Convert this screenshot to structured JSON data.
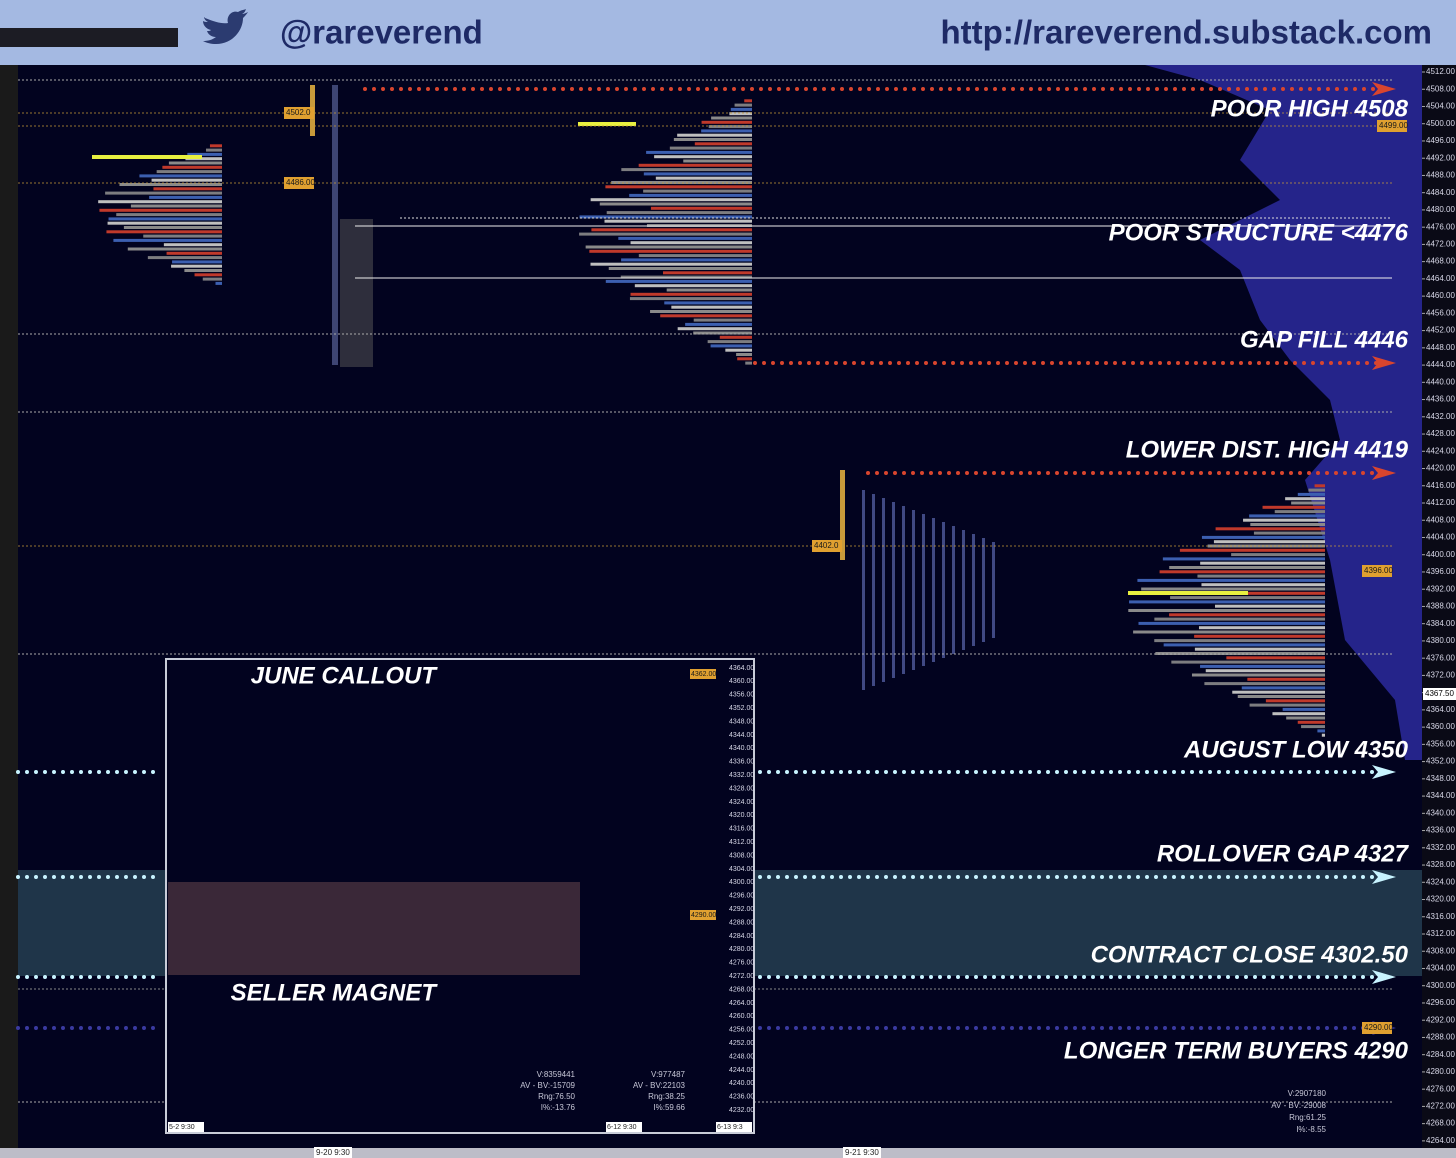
{
  "header": {
    "handle": "@rareverend",
    "url": "http://rareverend.substack.com"
  },
  "annotations": [
    {
      "label": "POOR HIGH 4508"
    },
    {
      "label": "POOR STRUCTURE <4476"
    },
    {
      "label": "GAP FILL 4446"
    },
    {
      "label": "LOWER DIST. HIGH 4419"
    },
    {
      "label": "AUGUST LOW 4350"
    },
    {
      "label": "ROLLOVER GAP 4327"
    },
    {
      "label": "CONTRACT CLOSE 4302.50"
    },
    {
      "label": "LONGER TERM BUYERS 4290"
    }
  ],
  "price_axis": [
    "4512.00",
    "4508.00",
    "4504.00",
    "4500.00",
    "4496.00",
    "4492.00",
    "4488.00",
    "4484.00",
    "4480.00",
    "4476.00",
    "4472.00",
    "4468.00",
    "4464.00",
    "4460.00",
    "4456.00",
    "4452.00",
    "4448.00",
    "4444.00",
    "4440.00",
    "4436.00",
    "4432.00",
    "4428.00",
    "4424.00",
    "4420.00",
    "4416.00",
    "4412.00",
    "4408.00",
    "4404.00",
    "4400.00",
    "4396.00",
    "4392.00",
    "4388.00",
    "4384.00",
    "4380.00",
    "4376.00",
    "4372.00",
    "4368.00",
    "4364.00",
    "4360.00",
    "4356.00",
    "4352.00",
    "4348.00",
    "4344.00",
    "4340.00",
    "4336.00",
    "4332.00",
    "4328.00",
    "4324.00",
    "4320.00",
    "4316.00",
    "4312.00",
    "4308.00",
    "4304.00",
    "4300.00",
    "4296.00",
    "4292.00",
    "4288.00",
    "4284.00",
    "4280.00",
    "4276.00",
    "4272.00",
    "4268.00",
    "4264.00"
  ],
  "last_price": "4367.50",
  "price_tags": [
    "4502.0",
    "4486.00",
    "4499.00",
    "4402.0",
    "4396.00",
    "4290.00"
  ],
  "dates": [
    "9-20  9:30",
    "9-21  9:30"
  ],
  "stats": [
    "V:2907180",
    "AV - BV:-29008",
    "Rng:61.25",
    "I%:-8.55"
  ],
  "callout": {
    "title": "JUNE CALLOUT",
    "subtitle": "SELLER MAGNET",
    "price_axis": [
      "4364.00",
      "4360.00",
      "4356.00",
      "4352.00",
      "4348.00",
      "4344.00",
      "4340.00",
      "4336.00",
      "4332.00",
      "4328.00",
      "4324.00",
      "4320.00",
      "4316.00",
      "4312.00",
      "4308.00",
      "4304.00",
      "4300.00",
      "4296.00",
      "4292.00",
      "4288.00",
      "4284.00",
      "4280.00",
      "4276.00",
      "4272.00",
      "4268.00",
      "4264.00",
      "4260.00",
      "4256.00",
      "4252.00",
      "4248.00",
      "4244.00",
      "4240.00",
      "4236.00",
      "4232.00"
    ],
    "price_tags": [
      "4362.00",
      "4290.00"
    ],
    "dates": [
      "5-2  9:30",
      "6-12  9:30",
      "6-13  9:3"
    ],
    "stats": [
      [
        "V:8359441",
        "AV - BV:-15709",
        "Rng:76.50",
        "I%:-13.76"
      ],
      [
        "V:977487",
        "AV - BV:22103",
        "Rng:38.25",
        "I%:59.66"
      ]
    ]
  }
}
